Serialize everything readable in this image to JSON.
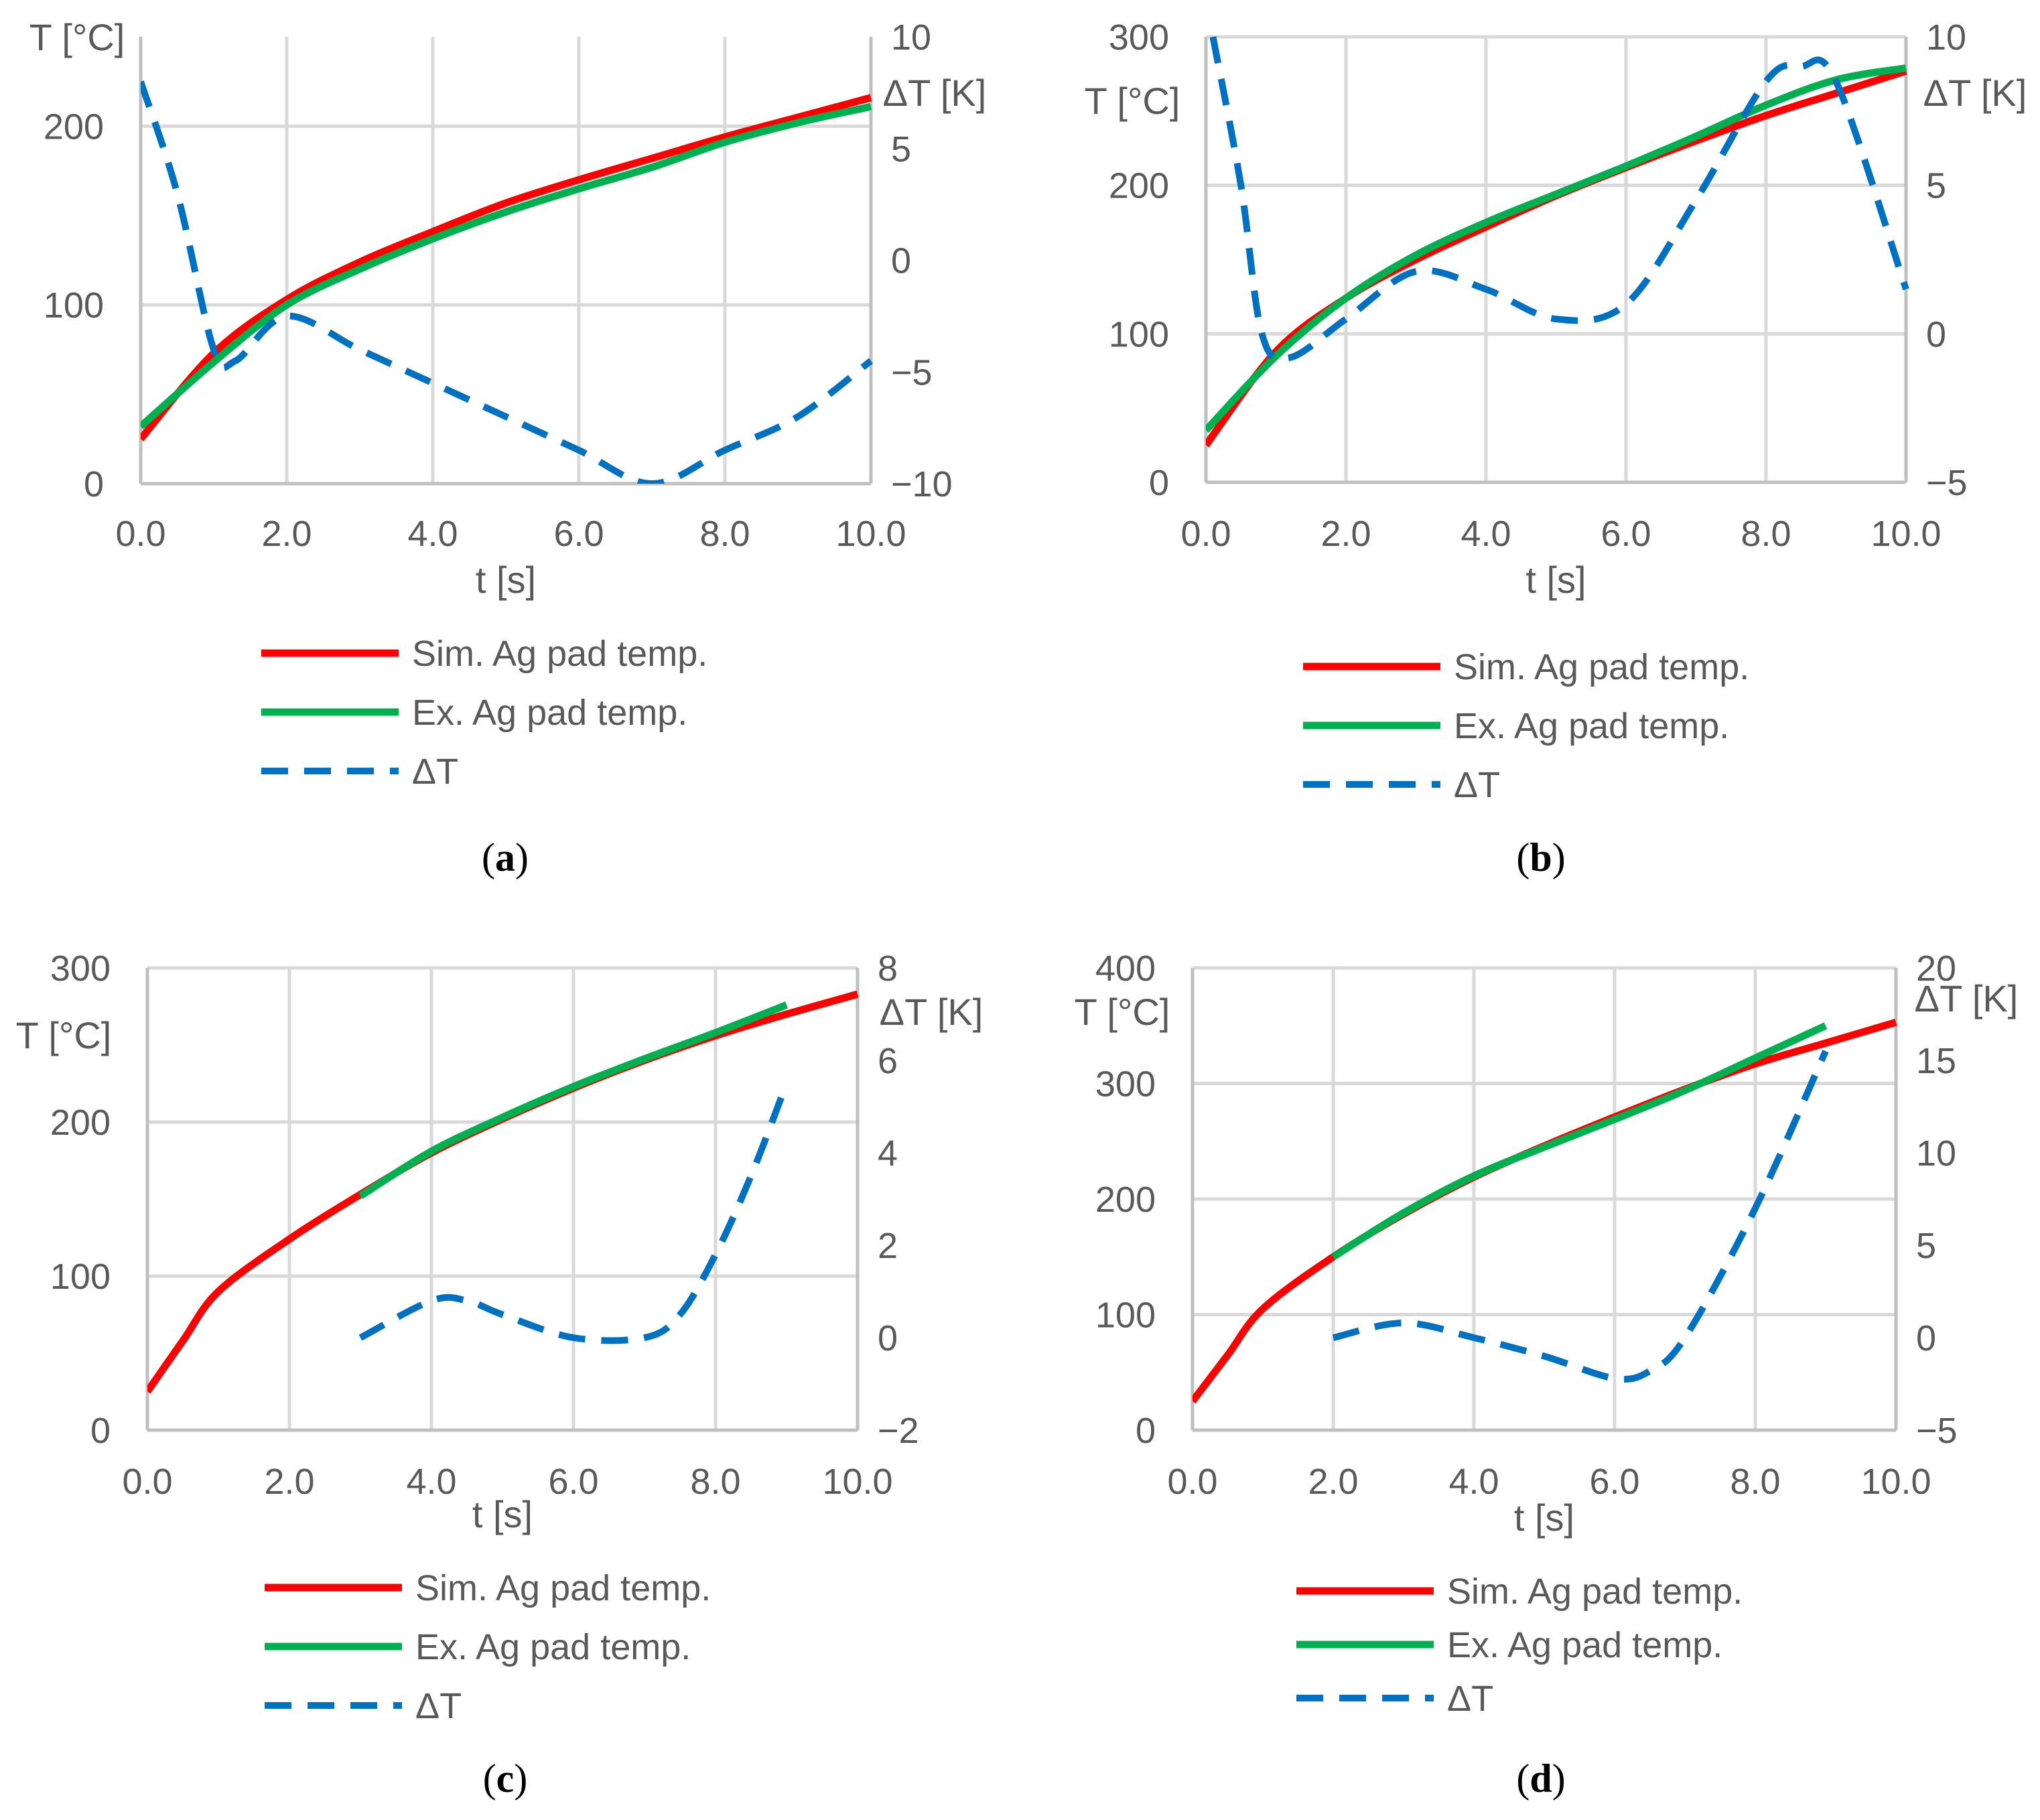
{
  "legend": {
    "sim": "Sim. Ag pad temp.",
    "ex": "Ex. Ag pad temp.",
    "dt": "ΔT"
  },
  "colors": {
    "sim": "#ff0000",
    "ex": "#00b050",
    "dt": "#0070c0",
    "grid": "#d9d9d9",
    "axis": "#bfbfbf",
    "text": "#595959"
  },
  "chart_data": [
    {
      "id": "a",
      "type": "line",
      "caption_label": "a",
      "xlabel": "t [s]",
      "ylabel": "T [°C]",
      "y2label": "ΔT [K]",
      "xlim": [
        0,
        10
      ],
      "ylim": [
        0,
        250
      ],
      "y2lim": [
        -10,
        10
      ],
      "xticks": [
        "0.0",
        "2.0",
        "4.0",
        "6.0",
        "8.0",
        "10.0"
      ],
      "yticks": [
        "0",
        "100",
        "200"
      ],
      "y2ticks": [
        "−10",
        "−5",
        "0",
        "5",
        "10"
      ],
      "series": [
        {
          "name": "Sim. Ag pad temp.",
          "axis": "left",
          "style": "sim",
          "x": [
            0,
            1,
            2,
            3,
            4,
            5,
            6,
            7,
            8,
            9,
            10
          ],
          "values": [
            25,
            73,
            103,
            124,
            141,
            157,
            170,
            182,
            194,
            205,
            216
          ]
        },
        {
          "name": "Ex. Ag pad temp.",
          "axis": "left",
          "style": "ex",
          "x": [
            0,
            1,
            2,
            3,
            4,
            5,
            6,
            7,
            8,
            9,
            10
          ],
          "values": [
            32,
            68,
            100,
            120,
            137,
            152,
            165,
            177,
            191,
            202,
            211
          ]
        },
        {
          "name": "ΔT",
          "axis": "right",
          "style": "dt",
          "x": [
            0,
            0.5,
            1,
            1.3,
            2,
            3,
            4,
            5,
            6,
            7,
            8,
            9,
            10
          ],
          "values": [
            8,
            3,
            -4,
            -4.5,
            -2.5,
            -4,
            -5.5,
            -7,
            -8.5,
            -10,
            -8.5,
            -7,
            -4.5
          ]
        }
      ]
    },
    {
      "id": "b",
      "type": "line",
      "caption_label": "b",
      "xlabel": "t [s]",
      "ylabel": "T [°C]",
      "y2label": "ΔT [K]",
      "xlim": [
        0,
        10
      ],
      "ylim": [
        0,
        300
      ],
      "y2lim": [
        -5,
        10
      ],
      "xticks": [
        "0.0",
        "2.0",
        "4.0",
        "6.0",
        "8.0",
        "10.0"
      ],
      "yticks": [
        "0",
        "100",
        "200",
        "300"
      ],
      "y2ticks": [
        "−5",
        "0",
        "5",
        "10"
      ],
      "series": [
        {
          "name": "Sim. Ag pad temp.",
          "axis": "left",
          "style": "sim",
          "x": [
            0,
            1,
            2,
            3,
            4,
            5,
            6,
            7,
            8,
            9,
            10
          ],
          "values": [
            25,
            88,
            124,
            150,
            172,
            193,
            212,
            230,
            247,
            262,
            277
          ]
        },
        {
          "name": "Ex. Ag pad temp.",
          "axis": "left",
          "style": "ex",
          "x": [
            0,
            1,
            2,
            3,
            4,
            5,
            6,
            7,
            8,
            9,
            10
          ],
          "values": [
            35,
            85,
            124,
            153,
            175,
            194,
            213,
            233,
            254,
            271,
            279
          ]
        },
        {
          "name": "ΔT",
          "axis": "right",
          "style": "dt",
          "x": [
            0.1,
            0.5,
            0.8,
            1.2,
            2,
            3,
            4,
            5,
            6,
            7,
            8,
            8.5,
            9,
            10
          ],
          "values": [
            10,
            5,
            0,
            -0.8,
            0.5,
            2.1,
            1.5,
            0.5,
            1,
            4.5,
            8.5,
            9,
            8.5,
            1.5
          ]
        }
      ]
    },
    {
      "id": "c",
      "type": "line",
      "caption_label": "c",
      "xlabel": "t [s]",
      "ylabel": "T [°C]",
      "y2label": "ΔT [K]",
      "xlim": [
        0,
        10
      ],
      "ylim": [
        0,
        300
      ],
      "y2lim": [
        -2,
        8
      ],
      "xticks": [
        "0.0",
        "2.0",
        "4.0",
        "6.0",
        "8.0",
        "10.0"
      ],
      "yticks": [
        "0",
        "100",
        "200",
        "300"
      ],
      "y2ticks": [
        "−2",
        "0",
        "2",
        "4",
        "6",
        "8"
      ],
      "series": [
        {
          "name": "Sim. Ag pad temp.",
          "axis": "left",
          "style": "sim",
          "x": [
            0,
            0.5,
            1,
            2,
            3,
            4,
            5,
            6,
            7,
            8,
            9,
            10
          ],
          "values": [
            25,
            58,
            90,
            124,
            153,
            180,
            202,
            222,
            240,
            256,
            270,
            283
          ]
        },
        {
          "name": "Ex. Ag pad temp.",
          "axis": "left",
          "style": "ex",
          "x": [
            3,
            4,
            5,
            6,
            7,
            8,
            9
          ],
          "values": [
            152,
            181,
            203,
            223,
            241,
            258,
            276
          ]
        },
        {
          "name": "ΔT",
          "axis": "right",
          "style": "dt",
          "x": [
            3,
            4,
            4.5,
            5,
            6,
            7,
            7.5,
            8,
            8.5,
            9
          ],
          "values": [
            0,
            0.8,
            0.8,
            0.5,
            0,
            0,
            0.5,
            1.8,
            3.5,
            5.5
          ]
        }
      ]
    },
    {
      "id": "d",
      "type": "line",
      "caption_label": "d",
      "xlabel": "t [s]",
      "ylabel": "T [°C]",
      "y2label": "ΔT [K]",
      "xlim": [
        0,
        10
      ],
      "ylim": [
        0,
        400
      ],
      "y2lim": [
        -5,
        20
      ],
      "xticks": [
        "0.0",
        "2.0",
        "4.0",
        "6.0",
        "8.0",
        "10.0"
      ],
      "yticks": [
        "0",
        "100",
        "200",
        "300",
        "400"
      ],
      "y2ticks": [
        "−5",
        "0",
        "5",
        "10",
        "15",
        "20"
      ],
      "series": [
        {
          "name": "Sim. Ag pad temp.",
          "axis": "left",
          "style": "sim",
          "x": [
            0,
            0.5,
            1,
            2,
            3,
            4,
            5,
            6,
            7,
            8,
            9,
            10
          ],
          "values": [
            25,
            65,
            105,
            150,
            187,
            219,
            246,
            271,
            295,
            317,
            335,
            353
          ]
        },
        {
          "name": "Ex. Ag pad temp.",
          "axis": "left",
          "style": "ex",
          "x": [
            2,
            3,
            4,
            5,
            6,
            7,
            8,
            9
          ],
          "values": [
            150,
            188,
            220,
            245,
            269,
            294,
            322,
            350
          ]
        },
        {
          "name": "ΔT",
          "axis": "right",
          "style": "dt",
          "x": [
            2,
            3,
            4,
            5,
            6,
            6.5,
            7,
            8,
            9
          ],
          "values": [
            0,
            0.8,
            0,
            -1,
            -2.2,
            -1.8,
            0,
            7,
            15.5
          ]
        }
      ]
    }
  ]
}
